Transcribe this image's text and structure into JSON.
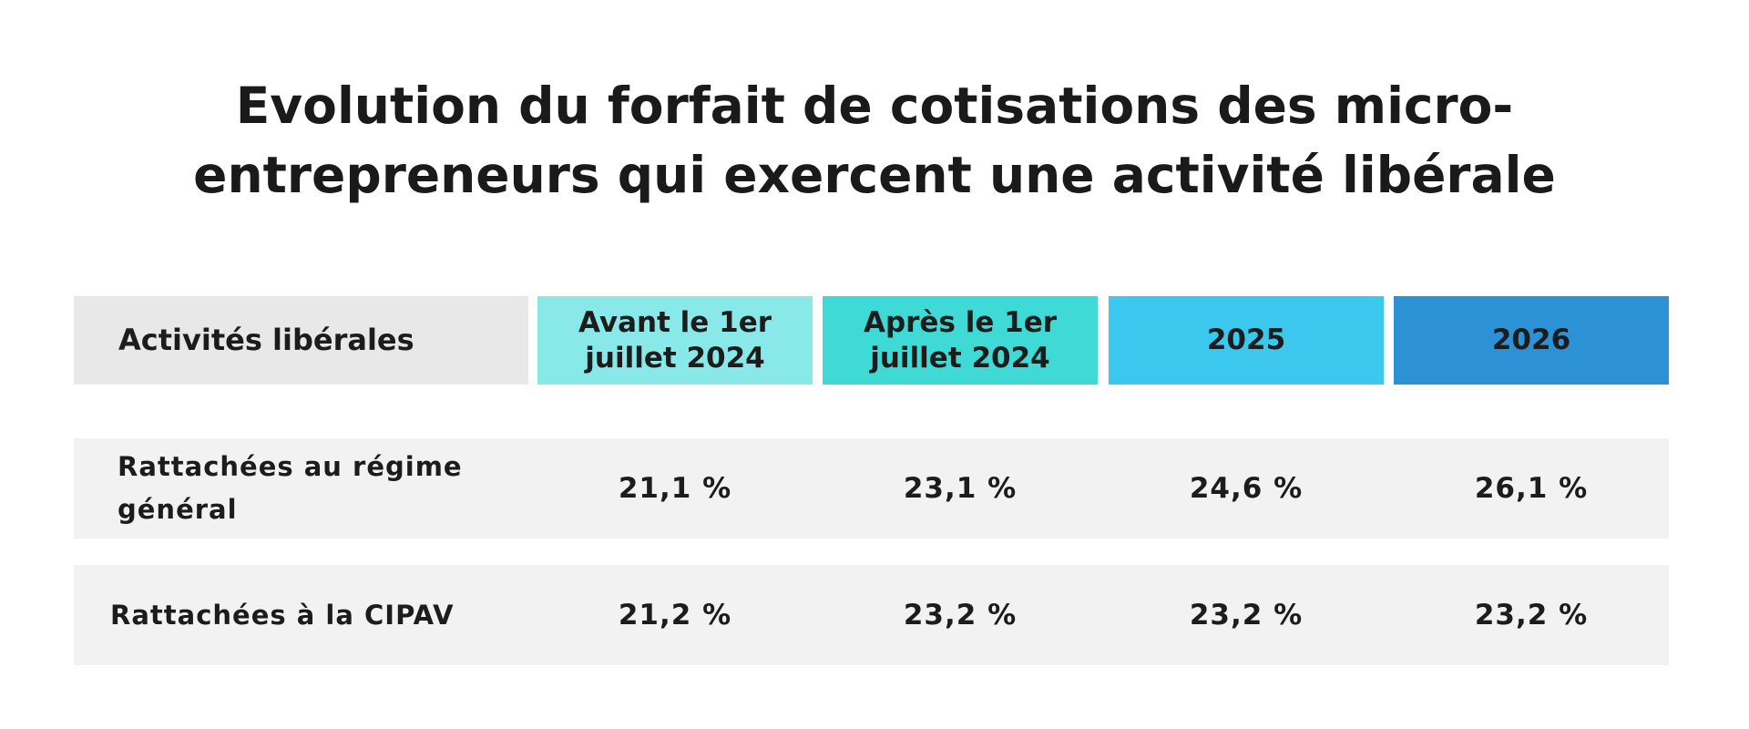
{
  "title": "Evolution du forfait de cotisations des micro-\nentrepreneurs qui exercent une activité libérale",
  "colors": {
    "label_header_bg": "#e8e8e8",
    "col1_bg": "#89e8e8",
    "col2_bg": "#3fd9d6",
    "col3_bg": "#3bc7ee",
    "col4_bg": "#2d91d6",
    "row_bg": "#f2f2f2",
    "text": "#1c1c1c"
  },
  "chart_data": {
    "type": "table",
    "title": "Evolution du forfait de cotisations des micro-entrepreneurs qui exercent une activité libérale",
    "columns": [
      "Activités libérales",
      "Avant le 1er\njuillet 2024",
      "Après le 1er\njuillet 2024",
      "2025",
      "2026"
    ],
    "rows": [
      {
        "label": "Rattachées au régime\ngénéral",
        "values": [
          "21,1 %",
          "23,1 %",
          "24,6 %",
          "26,1 %"
        ]
      },
      {
        "label": "Rattachées à la CIPAV",
        "values": [
          "21,2 %",
          "23,2 %",
          "23,2 %",
          "23,2 %"
        ]
      }
    ]
  }
}
